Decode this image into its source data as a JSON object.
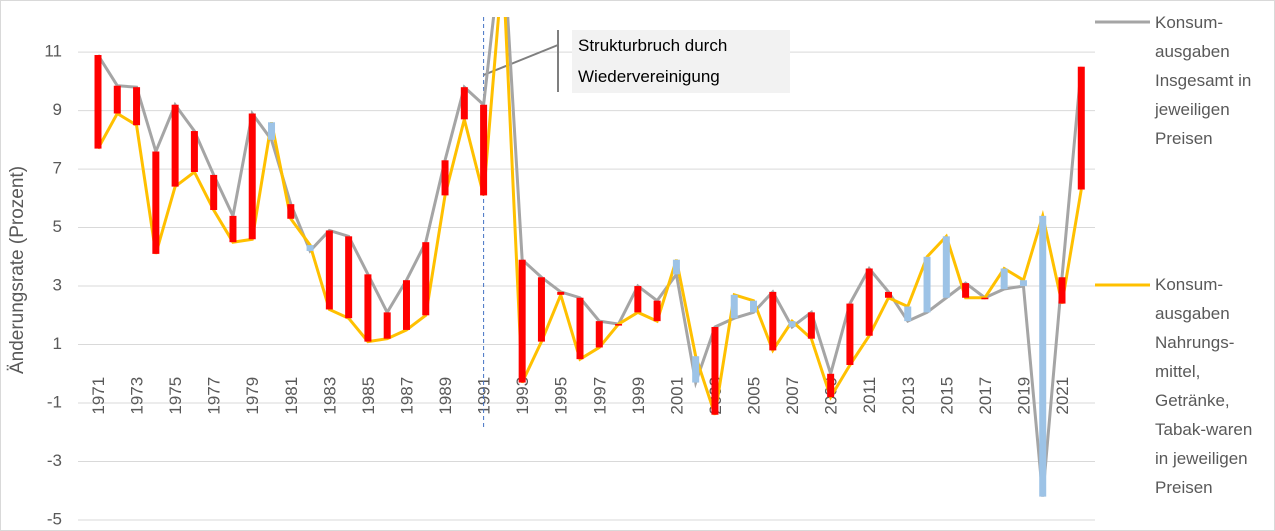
{
  "chart_data": {
    "type": "line",
    "y_axis_label": "Änderungsrate (Prozent)",
    "annotation": "Strukturbruch durch Wiedervereinigung",
    "break_year_index": 20,
    "categories": [
      "1971",
      null,
      "1973",
      null,
      "1975",
      null,
      "1977",
      null,
      "1979",
      null,
      "1981",
      null,
      "1983",
      null,
      "1985",
      null,
      "1987",
      null,
      "1989",
      null,
      "1991",
      null,
      "1993",
      null,
      "1995",
      null,
      "1997",
      null,
      "1999",
      null,
      "2001",
      null,
      "2003",
      null,
      "2005",
      null,
      "2007",
      null,
      "2009",
      null,
      "2011",
      null,
      "2013",
      null,
      "2015",
      null,
      "2017",
      null,
      "2019",
      null,
      "2021",
      null
    ],
    "series": [
      {
        "name": "Konsum-ausgaben Insgesamt in jeweiligen Preisen",
        "color": "#a5a5a5",
        "values": [
          10.9,
          9.85,
          9.8,
          7.6,
          9.2,
          8.3,
          6.8,
          5.4,
          8.9,
          8.0,
          5.8,
          4.2,
          4.9,
          4.7,
          3.4,
          2.1,
          3.2,
          4.5,
          7.3,
          9.8,
          9.2,
          15,
          3.9,
          3.3,
          2.8,
          2.6,
          1.8,
          1.7,
          3.0,
          2.5,
          3.4,
          -0.3,
          1.6,
          1.9,
          2.1,
          2.8,
          1.6,
          2.1,
          0.0,
          2.4,
          3.6,
          2.8,
          1.8,
          2.1,
          2.6,
          3.1,
          2.6,
          2.9,
          3.0,
          -4.2,
          3.3,
          10.5
        ]
      },
      {
        "name": "Konsum-ausgaben Nahrungs-mittel, Getränke, Tabak-waren in jeweiligen Preisen",
        "color": "#ffc000",
        "values": [
          7.7,
          8.9,
          8.5,
          4.1,
          6.4,
          6.9,
          5.6,
          4.5,
          4.6,
          8.6,
          5.3,
          4.4,
          2.2,
          1.9,
          1.1,
          1.2,
          1.5,
          2.0,
          6.1,
          8.7,
          6.1,
          14,
          -0.3,
          1.1,
          2.7,
          0.5,
          0.9,
          1.7,
          2.1,
          1.8,
          3.9,
          0.6,
          -1.4,
          2.7,
          2.5,
          0.8,
          1.8,
          1.2,
          -0.8,
          0.3,
          1.3,
          2.6,
          2.3,
          4.0,
          4.7,
          2.6,
          2.6,
          3.6,
          3.2,
          5.4,
          2.4,
          6.3
        ]
      }
    ],
    "up_down_bars": true,
    "down_bar_color": "#ff0000",
    "up_bar_color": "#9dc3e6",
    "ylim": [
      -5,
      12.2
    ],
    "yticks": [
      -5,
      -3,
      -1,
      1,
      3,
      5,
      7,
      9,
      11
    ],
    "grid": true
  }
}
